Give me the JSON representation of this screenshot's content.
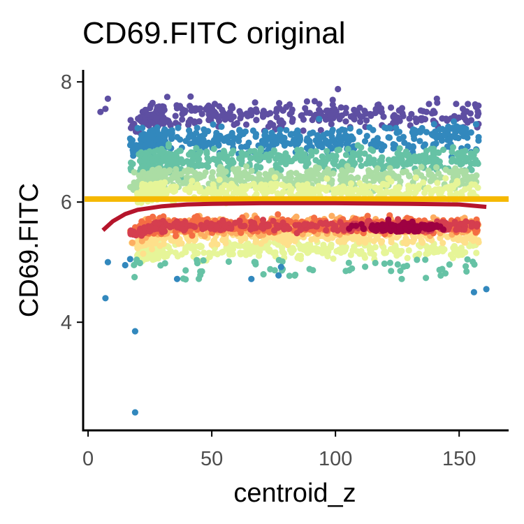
{
  "chart_data": {
    "type": "scatter",
    "title": "CD69.FITC original",
    "xlabel": "centroid_z",
    "ylabel": "CD69.FITC",
    "xlim": [
      -2,
      170
    ],
    "ylim": [
      2.2,
      8.2
    ],
    "xticks": [
      0,
      50,
      100,
      150
    ],
    "yticks": [
      4,
      6,
      8
    ],
    "grid": false,
    "legend": "none",
    "color_scale": "spectral (point density: red = high, yellow = mid, green/blue = low)",
    "reference_line": {
      "orientation": "horizontal",
      "y": 6.05,
      "color": "#f5b800"
    },
    "trend_line": {
      "color": "#b5142b",
      "x": [
        6,
        10,
        15,
        20,
        30,
        40,
        50,
        70,
        100,
        130,
        150,
        161
      ],
      "y": [
        5.53,
        5.68,
        5.8,
        5.87,
        5.93,
        5.96,
        5.97,
        5.98,
        5.98,
        5.97,
        5.96,
        5.92
      ]
    },
    "outlier_points": [
      {
        "x": 19,
        "y": 2.5
      },
      {
        "x": 19,
        "y": 3.85
      },
      {
        "x": 7,
        "y": 4.4
      },
      {
        "x": 8,
        "y": 5.0
      },
      {
        "x": 156,
        "y": 4.5
      },
      {
        "x": 161,
        "y": 4.55
      },
      {
        "x": 5,
        "y": 7.5
      },
      {
        "x": 7,
        "y": 7.55
      },
      {
        "x": 8,
        "y": 7.72
      },
      {
        "x": 32,
        "y": 7.75
      },
      {
        "x": 101,
        "y": 7.88
      },
      {
        "x": 141,
        "y": 7.72
      },
      {
        "x": 15,
        "y": 4.95
      },
      {
        "x": 17,
        "y": 5.05
      },
      {
        "x": 36,
        "y": 4.72
      },
      {
        "x": 77,
        "y": 4.78
      },
      {
        "x": 78,
        "y": 4.92
      },
      {
        "x": 66,
        "y": 4.72
      }
    ],
    "density_bands": [
      {
        "y_center": 7.45,
        "y_spread": 0.28,
        "count": 330,
        "color": "#5e4fa2"
      },
      {
        "y_center": 7.05,
        "y_spread": 0.3,
        "count": 420,
        "color": "#3288bd"
      },
      {
        "y_center": 6.7,
        "y_spread": 0.25,
        "count": 450,
        "color": "#66c2a5"
      },
      {
        "y_center": 6.4,
        "y_spread": 0.22,
        "count": 420,
        "color": "#abdda4"
      },
      {
        "y_center": 6.2,
        "y_spread": 0.2,
        "count": 380,
        "color": "#e6f598"
      },
      {
        "y_center": 5.2,
        "y_spread": 0.18,
        "count": 320,
        "color": "#e6f598"
      },
      {
        "y_center": 5.45,
        "y_spread": 0.2,
        "count": 420,
        "color": "#fee08b"
      },
      {
        "y_center": 5.6,
        "y_spread": 0.18,
        "count": 480,
        "color": "#fdae61"
      },
      {
        "y_center": 5.62,
        "y_spread": 0.15,
        "count": 420,
        "color": "#f46d43"
      },
      {
        "y_center": 5.6,
        "y_spread": 0.1,
        "count": 300,
        "color": "#d53e4f"
      }
    ],
    "outer_points": {
      "y_low": [
        4.7,
        5.05
      ],
      "count": 60,
      "color": "#66c2a5"
    },
    "dense_core": {
      "x_center": 125,
      "x_spread": 18,
      "y_center": 5.58,
      "y_spread": 0.08,
      "count": 150,
      "color": "#9e0142"
    },
    "x_domain": [
      17,
      158
    ]
  }
}
